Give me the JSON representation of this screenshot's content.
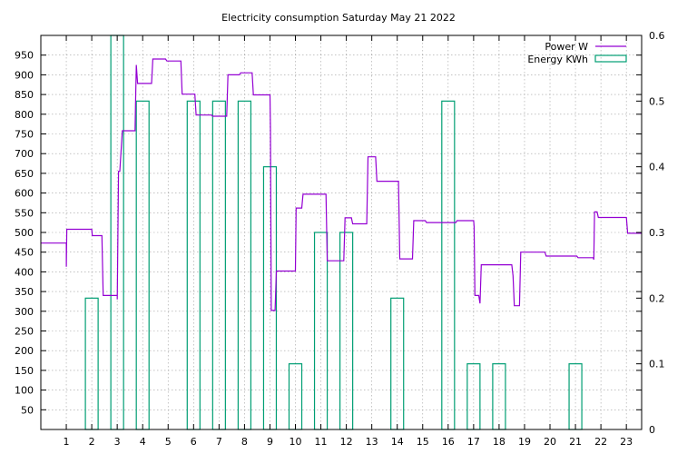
{
  "chart_data": {
    "type": "line",
    "title": "Electricity consumption Saturday May 21 2022",
    "xlabel": "",
    "ylabel": "",
    "y2label": "",
    "xlim": [
      0,
      23.6
    ],
    "ylim": [
      0,
      1000
    ],
    "y2lim": [
      0,
      0.6
    ],
    "x_ticks": [
      1,
      2,
      3,
      4,
      5,
      6,
      7,
      8,
      9,
      10,
      11,
      12,
      13,
      14,
      15,
      16,
      17,
      18,
      19,
      20,
      21,
      22,
      23
    ],
    "y_ticks": [
      50,
      100,
      150,
      200,
      250,
      300,
      350,
      400,
      450,
      500,
      550,
      600,
      650,
      700,
      750,
      800,
      850,
      900,
      950
    ],
    "y2_ticks": [
      0,
      0.1,
      0.2,
      0.3,
      0.4,
      0.5,
      0.6
    ],
    "grid": true,
    "legend_position": "top-right",
    "colors": {
      "power": "#9400d3",
      "energy": "#009e73",
      "axis": "#000000",
      "grid": "#a0a0a0"
    },
    "series": [
      {
        "name": "Power W",
        "kind": "step",
        "points": [
          [
            0.0,
            473
          ],
          [
            1.0,
            473
          ],
          [
            1.0,
            413
          ],
          [
            1.02,
            508
          ],
          [
            2.0,
            508
          ],
          [
            2.02,
            492
          ],
          [
            2.4,
            492
          ],
          [
            2.42,
            425
          ],
          [
            2.45,
            340
          ],
          [
            3.0,
            340
          ],
          [
            3.0,
            330
          ],
          [
            3.05,
            655
          ],
          [
            3.1,
            655
          ],
          [
            3.2,
            758
          ],
          [
            3.7,
            758
          ],
          [
            3.72,
            822
          ],
          [
            3.75,
            925
          ],
          [
            3.8,
            878
          ],
          [
            4.35,
            878
          ],
          [
            4.4,
            940
          ],
          [
            4.9,
            940
          ],
          [
            4.95,
            935
          ],
          [
            5.5,
            935
          ],
          [
            5.55,
            851
          ],
          [
            6.05,
            851
          ],
          [
            6.1,
            798
          ],
          [
            6.7,
            798
          ],
          [
            6.75,
            795
          ],
          [
            7.3,
            795
          ],
          [
            7.35,
            900
          ],
          [
            7.8,
            900
          ],
          [
            7.85,
            905
          ],
          [
            8.3,
            905
          ],
          [
            8.35,
            849
          ],
          [
            9.0,
            849
          ],
          [
            9.02,
            762
          ],
          [
            9.05,
            302
          ],
          [
            9.2,
            302
          ],
          [
            9.25,
            402
          ],
          [
            10.0,
            402
          ],
          [
            10.03,
            562
          ],
          [
            10.25,
            562
          ],
          [
            10.3,
            597
          ],
          [
            11.2,
            597
          ],
          [
            11.25,
            428
          ],
          [
            11.9,
            428
          ],
          [
            11.95,
            537
          ],
          [
            12.2,
            537
          ],
          [
            12.25,
            522
          ],
          [
            12.8,
            522
          ],
          [
            12.85,
            692
          ],
          [
            13.15,
            692
          ],
          [
            13.2,
            630
          ],
          [
            14.05,
            630
          ],
          [
            14.1,
            433
          ],
          [
            14.6,
            433
          ],
          [
            14.65,
            530
          ],
          [
            15.1,
            530
          ],
          [
            15.15,
            525
          ],
          [
            16.3,
            525
          ],
          [
            16.35,
            530
          ],
          [
            17.0,
            530
          ],
          [
            17.02,
            515
          ],
          [
            17.05,
            340
          ],
          [
            17.2,
            340
          ],
          [
            17.25,
            320
          ],
          [
            17.3,
            418
          ],
          [
            18.5,
            418
          ],
          [
            18.55,
            390
          ],
          [
            18.6,
            314
          ],
          [
            18.8,
            314
          ],
          [
            18.85,
            450
          ],
          [
            19.8,
            450
          ],
          [
            19.85,
            440
          ],
          [
            21.05,
            440
          ],
          [
            21.1,
            436
          ],
          [
            21.7,
            436
          ],
          [
            21.72,
            431
          ],
          [
            21.75,
            552
          ],
          [
            21.85,
            552
          ],
          [
            21.9,
            538
          ],
          [
            23.0,
            538
          ],
          [
            23.05,
            498
          ],
          [
            23.6,
            498
          ]
        ]
      },
      {
        "name": "Energy KWh",
        "kind": "boxes",
        "width": 0.5,
        "x": [
          2,
          3,
          4,
          6,
          7,
          8,
          9,
          10,
          11,
          12,
          14,
          16,
          17,
          18,
          21
        ],
        "values": [
          0.2,
          0.6,
          0.5,
          0.5,
          0.5,
          0.5,
          0.4,
          0.1,
          0.3,
          0.3,
          0.2,
          0.5,
          0.1,
          0.1,
          0.1
        ]
      }
    ]
  }
}
